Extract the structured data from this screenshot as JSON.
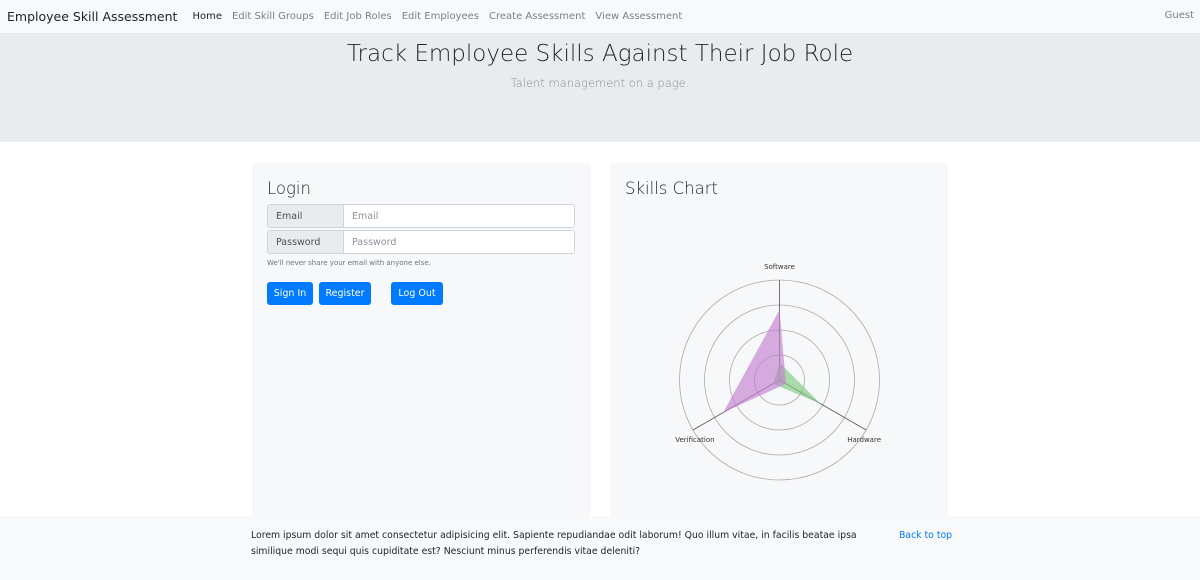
{
  "navbar": {
    "brand": "Employee Skill Assessment",
    "links": [
      {
        "label": "Home",
        "active": true
      },
      {
        "label": "Edit Skill Groups"
      },
      {
        "label": "Edit Job Roles"
      },
      {
        "label": "Edit Employees"
      },
      {
        "label": "Create Assessment"
      },
      {
        "label": "View Assessment"
      }
    ],
    "user": "Guest"
  },
  "jumbotron": {
    "title": "Track Employee Skills Against Their Job Role",
    "lead": "Talent management on a page."
  },
  "login": {
    "title": "Login",
    "email_label": "Email",
    "email_placeholder": "Email",
    "password_label": "Password",
    "password_placeholder": "Password",
    "help_text": "We'll never share your email with anyone else.",
    "signin_label": "Sign In",
    "register_label": "Register",
    "logout_label": "Log Out"
  },
  "skills_chart": {
    "title": "Skills Chart"
  },
  "chart_data": {
    "type": "radar",
    "title": "Skills Chart",
    "axes": [
      "Software",
      "Hardware",
      "Verification"
    ],
    "rmax": 4,
    "grid_rings": [
      1,
      2,
      3,
      4
    ],
    "series": [
      {
        "values": [
          0.7,
          1.9,
          0.3
        ],
        "color": "#7fcb7f"
      },
      {
        "values": [
          2.8,
          0.3,
          2.6
        ],
        "color": "#c37fd1"
      }
    ]
  },
  "footer": {
    "text": "Lorem ipsum dolor sit amet consectetur adipisicing elit. Sapiente repudiandae odit laborum! Quo illum vitae, in facilis beatae ipsa similique modi sequi quis cupiditate est? Nesciunt minus perferendis vitae deleniti?",
    "back_to_top": "Back to top"
  }
}
